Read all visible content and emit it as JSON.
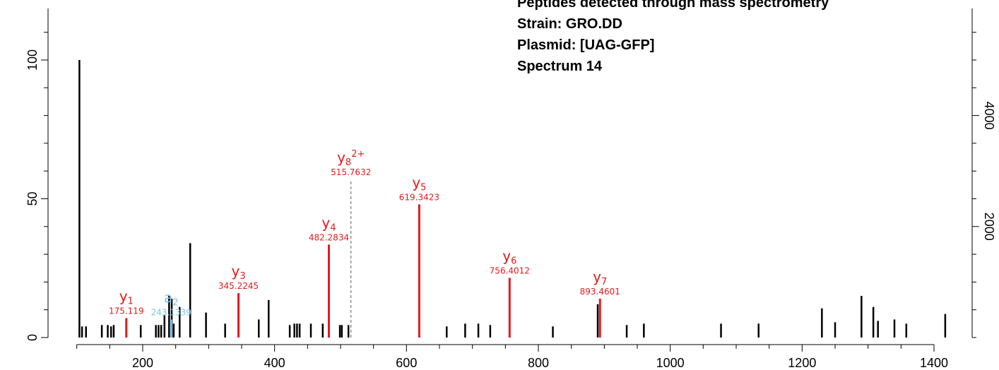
{
  "chart_data": {
    "type": "bar",
    "title_lines": [
      "Peptides detected through mass spectrometry",
      "Strain: GRO.DD",
      "Plasmid: [UAG-GFP]",
      "Spectrum 14"
    ],
    "xlim": [
      60,
      1440
    ],
    "ylim": [
      0,
      115
    ],
    "x_ticks": [
      200,
      400,
      600,
      800,
      1000,
      1200,
      1400
    ],
    "y_ticks": [
      0,
      50,
      100
    ],
    "right_axis": {
      "ylim": [
        0,
        5750
      ],
      "ticks": [
        2000,
        4000
      ]
    },
    "colors": {
      "peak": "#000000",
      "y_ion": "#e31a1c",
      "a_ion": "#7fc4e8",
      "dashed": "#777777"
    },
    "peaks": [
      {
        "mz": 104,
        "intensity": 100
      },
      {
        "mz": 108,
        "intensity": 4
      },
      {
        "mz": 114,
        "intensity": 4
      },
      {
        "mz": 138,
        "intensity": 4.5
      },
      {
        "mz": 147,
        "intensity": 4.5
      },
      {
        "mz": 152,
        "intensity": 4
      },
      {
        "mz": 156,
        "intensity": 4.5
      },
      {
        "mz": 197,
        "intensity": 4.5
      },
      {
        "mz": 220,
        "intensity": 4.5
      },
      {
        "mz": 224,
        "intensity": 4.5
      },
      {
        "mz": 228,
        "intensity": 4.5
      },
      {
        "mz": 233,
        "intensity": 8
      },
      {
        "mz": 240,
        "intensity": 15
      },
      {
        "mz": 244,
        "intensity": 14
      },
      {
        "mz": 247,
        "intensity": 5
      },
      {
        "mz": 256,
        "intensity": 11
      },
      {
        "mz": 272,
        "intensity": 34
      },
      {
        "mz": 296,
        "intensity": 9
      },
      {
        "mz": 325,
        "intensity": 5
      },
      {
        "mz": 376,
        "intensity": 6.5
      },
      {
        "mz": 391,
        "intensity": 13.5
      },
      {
        "mz": 423,
        "intensity": 4.5
      },
      {
        "mz": 430,
        "intensity": 5
      },
      {
        "mz": 434,
        "intensity": 5
      },
      {
        "mz": 438,
        "intensity": 5
      },
      {
        "mz": 455,
        "intensity": 5
      },
      {
        "mz": 473,
        "intensity": 5
      },
      {
        "mz": 499,
        "intensity": 4.5
      },
      {
        "mz": 502,
        "intensity": 4.5
      },
      {
        "mz": 512,
        "intensity": 4.5
      },
      {
        "mz": 661,
        "intensity": 4
      },
      {
        "mz": 689,
        "intensity": 5
      },
      {
        "mz": 709,
        "intensity": 5
      },
      {
        "mz": 727,
        "intensity": 4.5
      },
      {
        "mz": 822,
        "intensity": 4
      },
      {
        "mz": 890,
        "intensity": 12
      },
      {
        "mz": 934,
        "intensity": 4.5
      },
      {
        "mz": 960,
        "intensity": 5
      },
      {
        "mz": 1077,
        "intensity": 5
      },
      {
        "mz": 1134,
        "intensity": 5
      },
      {
        "mz": 1230,
        "intensity": 10.5
      },
      {
        "mz": 1250,
        "intensity": 5.5
      },
      {
        "mz": 1290,
        "intensity": 15
      },
      {
        "mz": 1308,
        "intensity": 11
      },
      {
        "mz": 1315,
        "intensity": 6
      },
      {
        "mz": 1340,
        "intensity": 6.5
      },
      {
        "mz": 1358,
        "intensity": 5
      },
      {
        "mz": 1417,
        "intensity": 8.5
      }
    ],
    "annotated_ions": [
      {
        "ion": "y",
        "sub": "1",
        "sup": "",
        "mz": 175.119,
        "mz_label": "175.119",
        "intensity": 7,
        "series": "y_ion"
      },
      {
        "ion": "a",
        "sub": "2",
        "sup": "",
        "mz": 243.1339,
        "mz_label": "243.1339",
        "intensity": 6.5,
        "series": "a_ion"
      },
      {
        "ion": "y",
        "sub": "3",
        "sup": "",
        "mz": 345.2245,
        "mz_label": "345.2245",
        "intensity": 16,
        "series": "y_ion"
      },
      {
        "ion": "y",
        "sub": "4",
        "sup": "",
        "mz": 482.2834,
        "mz_label": "482.2834",
        "intensity": 33.5,
        "series": "y_ion"
      },
      {
        "ion": "y",
        "sub": "8",
        "sup": "2+",
        "mz": 515.7632,
        "mz_label": "515.7632",
        "intensity": 57,
        "series": "dashed"
      },
      {
        "ion": "y",
        "sub": "5",
        "sup": "",
        "mz": 619.3423,
        "mz_label": "619.3423",
        "intensity": 48,
        "series": "y_ion"
      },
      {
        "ion": "y",
        "sub": "6",
        "sup": "",
        "mz": 756.4012,
        "mz_label": "756.4012",
        "intensity": 21.5,
        "series": "y_ion"
      },
      {
        "ion": "y",
        "sub": "7",
        "sup": "",
        "mz": 893.4601,
        "mz_label": "893.4601",
        "intensity": 14,
        "series": "y_ion"
      }
    ]
  }
}
